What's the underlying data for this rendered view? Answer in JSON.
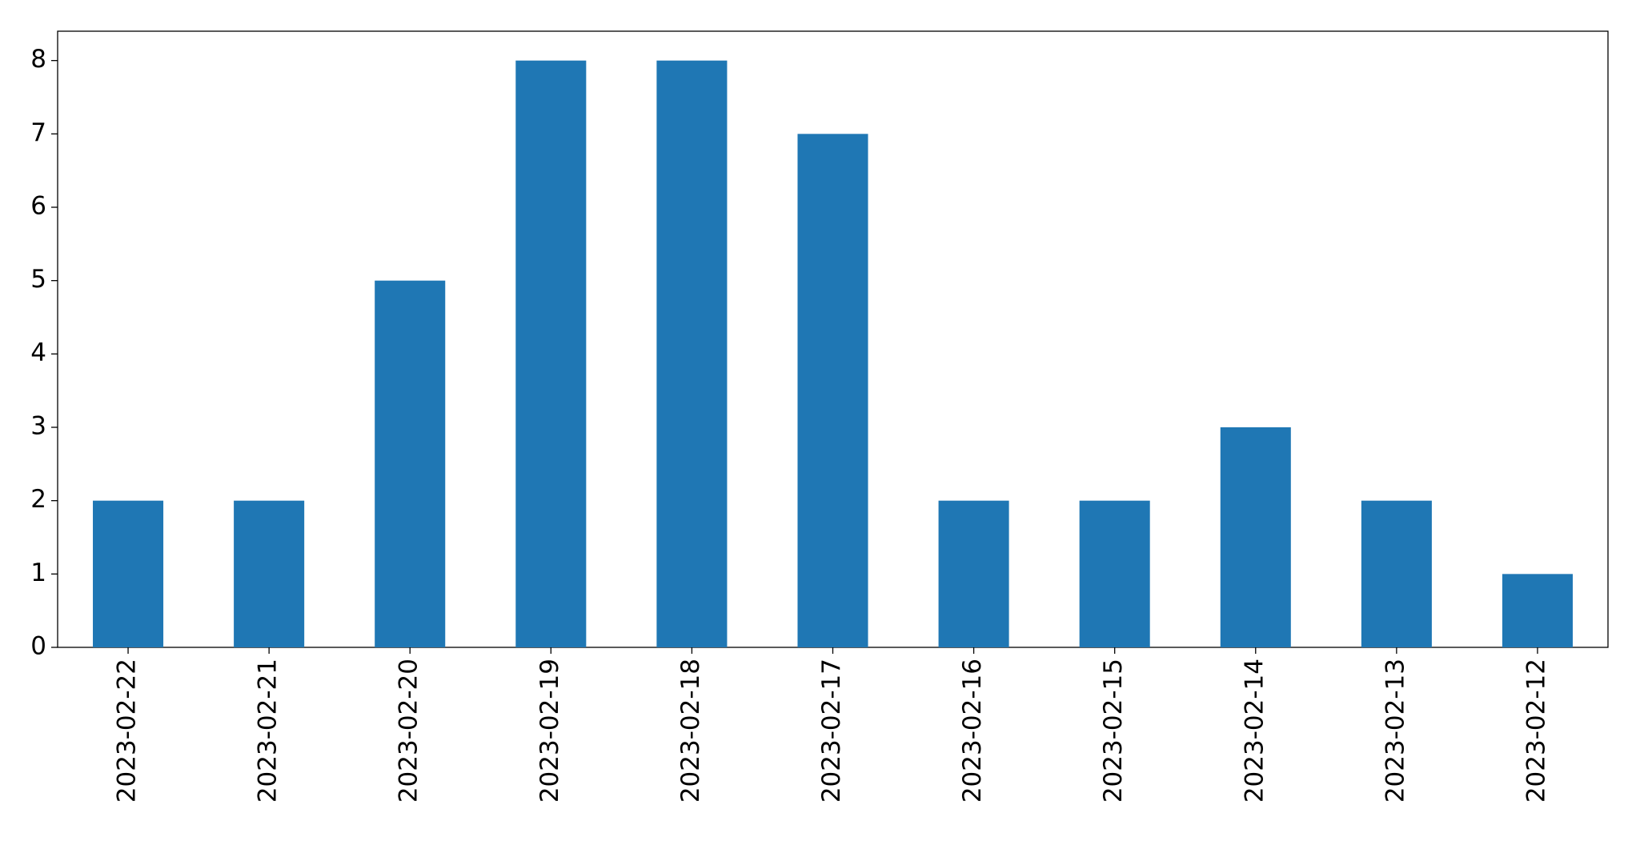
{
  "chart_data": {
    "type": "bar",
    "categories": [
      "2023-02-22",
      "2023-02-21",
      "2023-02-20",
      "2023-02-19",
      "2023-02-18",
      "2023-02-17",
      "2023-02-16",
      "2023-02-15",
      "2023-02-14",
      "2023-02-13",
      "2023-02-12"
    ],
    "values": [
      2,
      2,
      5,
      8,
      8,
      7,
      2,
      2,
      3,
      2,
      1
    ],
    "color": "#1f77b4",
    "ylim": [
      0,
      8.4
    ],
    "yticks": [
      0,
      1,
      2,
      3,
      4,
      5,
      6,
      7,
      8
    ],
    "grid": false
  }
}
